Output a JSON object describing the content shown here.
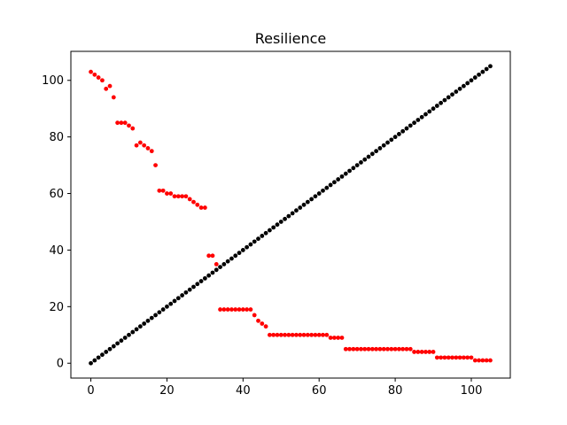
{
  "chart_data": {
    "type": "scatter",
    "title": "Resilience",
    "xlabel": "",
    "ylabel": "",
    "xlim": [
      -5.25,
      110.25
    ],
    "ylim": [
      -5.25,
      110.25
    ],
    "xticks": [
      0,
      20,
      40,
      60,
      80,
      100
    ],
    "yticks": [
      0,
      20,
      40,
      60,
      80,
      100
    ],
    "grid": false,
    "series": [
      {
        "color": "#ff0000",
        "x": [
          0,
          1,
          2,
          3,
          4,
          5,
          6,
          7,
          8,
          9,
          10,
          11,
          12,
          13,
          14,
          15,
          16,
          17,
          18,
          19,
          20,
          21,
          22,
          23,
          24,
          25,
          26,
          27,
          28,
          29,
          30,
          31,
          32,
          33,
          34,
          35,
          36,
          37,
          38,
          39,
          40,
          41,
          42,
          43,
          44,
          45,
          46,
          47,
          48,
          49,
          50,
          51,
          52,
          53,
          54,
          55,
          56,
          57,
          58,
          59,
          60,
          61,
          62,
          63,
          64,
          65,
          66,
          67,
          68,
          69,
          70,
          71,
          72,
          73,
          74,
          75,
          76,
          77,
          78,
          79,
          80,
          81,
          82,
          83,
          84,
          85,
          86,
          87,
          88,
          89,
          90,
          91,
          92,
          93,
          94,
          95,
          96,
          97,
          98,
          99,
          100,
          101,
          102,
          103,
          104,
          105
        ],
        "y": [
          103,
          102,
          101,
          100,
          97,
          98,
          94,
          85,
          85,
          85,
          84,
          83,
          77,
          78,
          77,
          76,
          75,
          70,
          61,
          61,
          60,
          60,
          59,
          59,
          59,
          59,
          58,
          57,
          56,
          55,
          55,
          38,
          38,
          35,
          19,
          19,
          19,
          19,
          19,
          19,
          19,
          19,
          19,
          17,
          15,
          14,
          13,
          10,
          10,
          10,
          10,
          10,
          10,
          10,
          10,
          10,
          10,
          10,
          10,
          10,
          10,
          10,
          10,
          9,
          9,
          9,
          9,
          5,
          5,
          5,
          5,
          5,
          5,
          5,
          5,
          5,
          5,
          5,
          5,
          5,
          5,
          5,
          5,
          5,
          5,
          4,
          4,
          4,
          4,
          4,
          4,
          2,
          2,
          2,
          2,
          2,
          2,
          2,
          2,
          2,
          2,
          1,
          1,
          1,
          1,
          1
        ]
      },
      {
        "color": "#000000",
        "x": [
          0,
          1,
          2,
          3,
          4,
          5,
          6,
          7,
          8,
          9,
          10,
          11,
          12,
          13,
          14,
          15,
          16,
          17,
          18,
          19,
          20,
          21,
          22,
          23,
          24,
          25,
          26,
          27,
          28,
          29,
          30,
          31,
          32,
          33,
          34,
          35,
          36,
          37,
          38,
          39,
          40,
          41,
          42,
          43,
          44,
          45,
          46,
          47,
          48,
          49,
          50,
          51,
          52,
          53,
          54,
          55,
          56,
          57,
          58,
          59,
          60,
          61,
          62,
          63,
          64,
          65,
          66,
          67,
          68,
          69,
          70,
          71,
          72,
          73,
          74,
          75,
          76,
          77,
          78,
          79,
          80,
          81,
          82,
          83,
          84,
          85,
          86,
          87,
          88,
          89,
          90,
          91,
          92,
          93,
          94,
          95,
          96,
          97,
          98,
          99,
          100,
          101,
          102,
          103,
          104,
          105
        ],
        "y": [
          0,
          1,
          2,
          3,
          4,
          5,
          6,
          7,
          8,
          9,
          10,
          11,
          12,
          13,
          14,
          15,
          16,
          17,
          18,
          19,
          20,
          21,
          22,
          23,
          24,
          25,
          26,
          27,
          28,
          29,
          30,
          31,
          32,
          33,
          34,
          35,
          36,
          37,
          38,
          39,
          40,
          41,
          42,
          43,
          44,
          45,
          46,
          47,
          48,
          49,
          50,
          51,
          52,
          53,
          54,
          55,
          56,
          57,
          58,
          59,
          60,
          61,
          62,
          63,
          64,
          65,
          66,
          67,
          68,
          69,
          70,
          71,
          72,
          73,
          74,
          75,
          76,
          77,
          78,
          79,
          80,
          81,
          82,
          83,
          84,
          85,
          86,
          87,
          88,
          89,
          90,
          91,
          92,
          93,
          94,
          95,
          96,
          97,
          98,
          99,
          100,
          101,
          102,
          103,
          104,
          105
        ]
      }
    ]
  }
}
